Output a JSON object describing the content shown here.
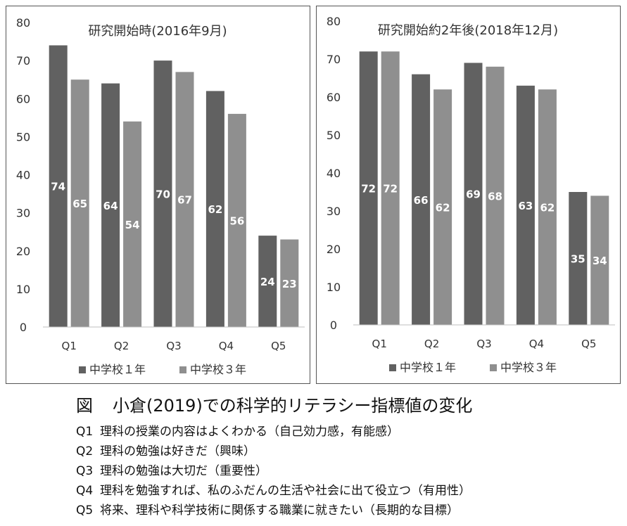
{
  "chart_data": [
    {
      "type": "bar",
      "title": "研究開始時(2016年9月)",
      "categories": [
        "Q1",
        "Q2",
        "Q3",
        "Q4",
        "Q5"
      ],
      "series": [
        {
          "name": "中学校１年",
          "values": [
            74,
            64,
            70,
            62,
            24
          ],
          "color": "#616161"
        },
        {
          "name": "中学校３年",
          "values": [
            65,
            54,
            67,
            56,
            23
          ],
          "color": "#8f8f8f"
        }
      ],
      "ylim": [
        0,
        80
      ],
      "yticks": [
        0,
        10,
        20,
        30,
        40,
        50,
        60,
        70,
        80
      ],
      "grid": false,
      "legend": "bottom"
    },
    {
      "type": "bar",
      "title": "研究開始約2年後(2018年12月)",
      "categories": [
        "Q1",
        "Q2",
        "Q3",
        "Q4",
        "Q5"
      ],
      "series": [
        {
          "name": "中学校１年",
          "values": [
            72,
            66,
            69,
            63,
            35
          ],
          "color": "#616161"
        },
        {
          "name": "中学校３年",
          "values": [
            72,
            62,
            68,
            62,
            34
          ],
          "color": "#8f8f8f"
        }
      ],
      "ylim": [
        0,
        80
      ],
      "yticks": [
        0,
        10,
        20,
        30,
        40,
        50,
        60,
        70,
        80
      ],
      "grid": false,
      "legend": "bottom"
    }
  ],
  "caption": {
    "fig_label": "図",
    "title": "小倉(2019)での科学的リテラシー指標値の変化",
    "questions": [
      {
        "id": "Q1",
        "text": "理科の授業の内容はよくわかる（自己効力感，有能感）"
      },
      {
        "id": "Q2",
        "text": "理科の勉強は好きだ（興味）"
      },
      {
        "id": "Q3",
        "text": "理科の勉強は大切だ（重要性）"
      },
      {
        "id": "Q4",
        "text": "理科を勉強すれば、私のふだんの生活や社会に出て役立つ（有用性）"
      },
      {
        "id": "Q5",
        "text": "将来、理科や科学技術に関係する職業に就きたい（長期的な目標）"
      }
    ]
  }
}
